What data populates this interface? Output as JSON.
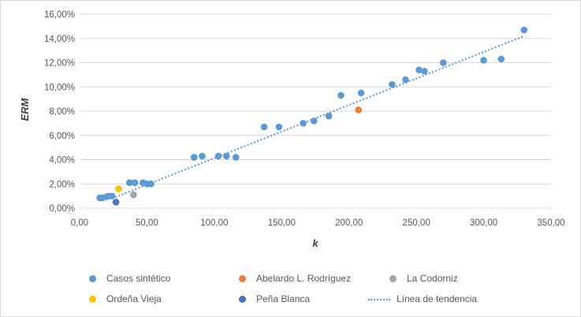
{
  "chart_data": {
    "type": "scatter",
    "xlabel": "k",
    "ylabel": "ERM",
    "xlim": [
      0,
      350
    ],
    "ylim": [
      0,
      0.16
    ],
    "x_ticks": [
      0,
      50,
      100,
      150,
      200,
      250,
      300,
      350
    ],
    "y_ticks": [
      0,
      0.02,
      0.04,
      0.06,
      0.08,
      0.1,
      0.12,
      0.14,
      0.16
    ],
    "x_tick_labels": [
      "0,00",
      "50,00",
      "100,00",
      "150,00",
      "200,00",
      "250,00",
      "300,00",
      "350,00"
    ],
    "y_tick_labels": [
      "0,00%",
      "2,00%",
      "4,00%",
      "6,00%",
      "8,00%",
      "10,00%",
      "12,00%",
      "14,00%",
      "16,00%"
    ],
    "grid": "horizontal",
    "legend_position": "bottom",
    "series": [
      {
        "name": "Casos sintético",
        "color": "#5b9bd5",
        "points": [
          [
            15,
            0.0085
          ],
          [
            17,
            0.0085
          ],
          [
            20,
            0.0095
          ],
          [
            22,
            0.01
          ],
          [
            24,
            0.01
          ],
          [
            37,
            0.021
          ],
          [
            41,
            0.021
          ],
          [
            47,
            0.021
          ],
          [
            50,
            0.02
          ],
          [
            53,
            0.02
          ],
          [
            85,
            0.042
          ],
          [
            91,
            0.043
          ],
          [
            103,
            0.043
          ],
          [
            109,
            0.043
          ],
          [
            116,
            0.042
          ],
          [
            137,
            0.067
          ],
          [
            148,
            0.067
          ],
          [
            166,
            0.07
          ],
          [
            174,
            0.072
          ],
          [
            185,
            0.076
          ],
          [
            194,
            0.093
          ],
          [
            209,
            0.095
          ],
          [
            232,
            0.102
          ],
          [
            242,
            0.106
          ],
          [
            252,
            0.114
          ],
          [
            256,
            0.113
          ],
          [
            270,
            0.12
          ],
          [
            300,
            0.122
          ],
          [
            313,
            0.123
          ],
          [
            330,
            0.147
          ]
        ]
      },
      {
        "name": "Abelardo L. Rodríguez",
        "color": "#ed7d31",
        "points": [
          [
            207,
            0.081
          ]
        ]
      },
      {
        "name": "La Codorniz",
        "color": "#a5a5a5",
        "points": [
          [
            40,
            0.011
          ]
        ]
      },
      {
        "name": "Ordeña Vieja",
        "color": "#ffc000",
        "points": [
          [
            29,
            0.016
          ]
        ]
      },
      {
        "name": "Peña Blanca",
        "color": "#4472c4",
        "points": [
          [
            27,
            0.005
          ]
        ]
      }
    ],
    "trendline": {
      "name": "Línea de tendencia",
      "color": "#5b9bd5",
      "style": "dotted",
      "start": [
        24,
        0.008
      ],
      "end": [
        330,
        0.142
      ]
    }
  }
}
